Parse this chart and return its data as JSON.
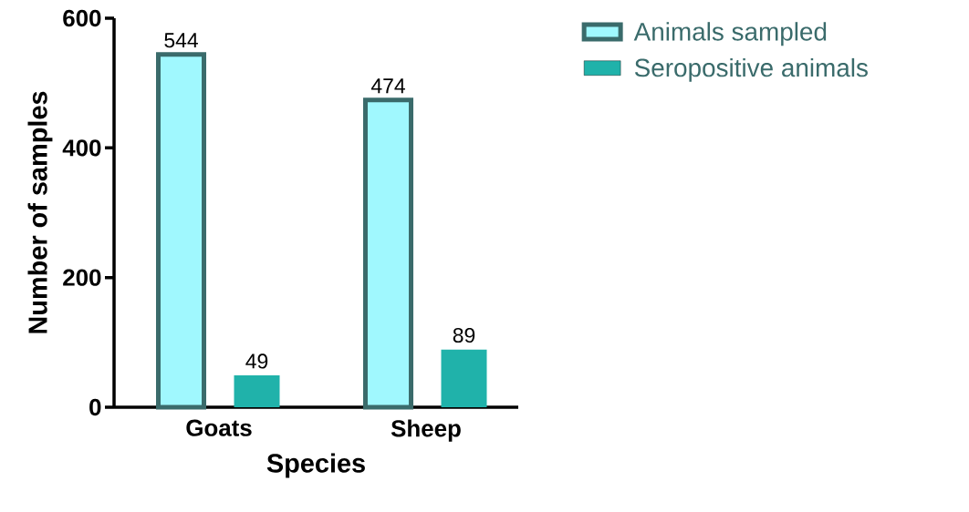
{
  "chart_data": {
    "type": "bar",
    "xlabel": "Species",
    "ylabel": "Number of samples",
    "categories": [
      "Goats",
      "Sheep"
    ],
    "series": [
      {
        "name": "Animals sampled",
        "color": "#a0f8fe",
        "values": [
          544,
          474
        ]
      },
      {
        "name": "Seropositive animals",
        "color": "#20b2aa",
        "values": [
          49,
          89
        ]
      }
    ],
    "ylim": [
      0,
      600
    ],
    "yticks": [
      0,
      200,
      400,
      600
    ],
    "data_labels": true,
    "legend": "top right",
    "grid": false
  }
}
